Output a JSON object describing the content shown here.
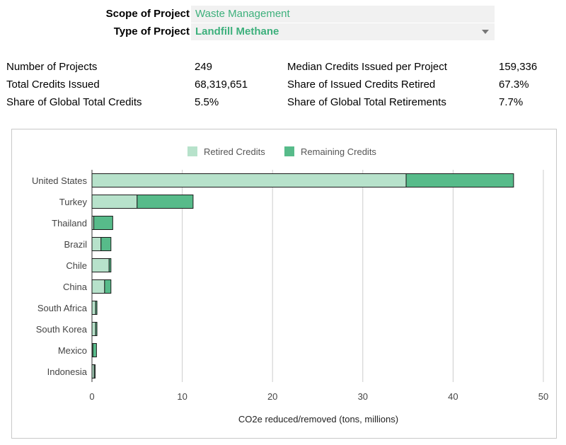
{
  "filters": {
    "scope_label": "Scope of Project",
    "scope_value": "Waste Management",
    "type_label": "Type of Project",
    "type_value": "Landfill Methane"
  },
  "stats": {
    "left": [
      {
        "label": "Number of Projects",
        "value": "249"
      },
      {
        "label": "Total Credits Issued",
        "value": "68,319,651"
      },
      {
        "label": "Share of Global Total Credits",
        "value": "5.5%"
      }
    ],
    "right": [
      {
        "label": "Median Credits Issued per Project",
        "value": "159,336"
      },
      {
        "label": "Share of Issued Credits Retired",
        "value": "67.3%"
      },
      {
        "label": "Share of Global Total Retirements",
        "value": "7.7%"
      }
    ]
  },
  "colors": {
    "accent_text": "#3db07c",
    "retired": "#b7e2cb",
    "remaining": "#57bb8a"
  },
  "chart_data": {
    "type": "bar",
    "orientation": "horizontal",
    "stacked": true,
    "categories": [
      "United States",
      "Turkey",
      "Thailand",
      "Brazil",
      "Chile",
      "China",
      "South Africa",
      "South Korea",
      "Mexico",
      "Indonesia"
    ],
    "series": [
      {
        "name": "Retired Credits",
        "values": [
          34.8,
          5.0,
          0.2,
          1.0,
          1.9,
          1.4,
          0.4,
          0.4,
          0.1,
          0.25
        ]
      },
      {
        "name": "Remaining Credits",
        "values": [
          11.9,
          6.2,
          2.1,
          1.1,
          0.2,
          0.7,
          0.15,
          0.15,
          0.4,
          0.1
        ]
      }
    ],
    "xlabel": "CO2e reduced/removed (tons, millions)",
    "xlim": [
      0,
      50
    ],
    "xticks": [
      0,
      10,
      20,
      30,
      40,
      50
    ],
    "legend_position": "top",
    "grid": true
  }
}
